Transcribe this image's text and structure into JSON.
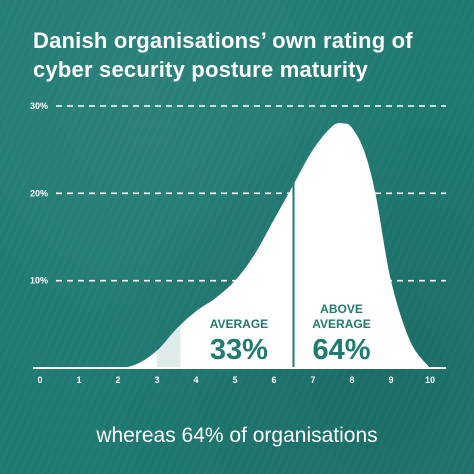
{
  "chart_data": {
    "type": "area",
    "title": "Danish organisations’ own rating of cyber security posture maturity",
    "xlabel": "",
    "ylabel": "",
    "x": [
      0,
      1,
      2,
      2.5,
      3,
      3.5,
      4,
      4.5,
      5,
      5.5,
      6,
      6.5,
      7,
      7.5,
      7.8,
      8,
      8.3,
      8.6,
      9,
      9.5,
      10
    ],
    "values": [
      0,
      0,
      0,
      0.5,
      2,
      4.5,
      6.5,
      8,
      10,
      13,
      17,
      21,
      25,
      27.7,
      28,
      27.5,
      25,
      20,
      10,
      3,
      0
    ],
    "xlim": [
      0,
      10
    ],
    "ylim": [
      0,
      30
    ],
    "x_ticks": [
      "0",
      "1",
      "2",
      "3",
      "4",
      "5",
      "6",
      "7",
      "8",
      "9",
      "10"
    ],
    "y_ticks": [
      "10%",
      "20%",
      "30%"
    ],
    "y_tick_values": [
      10,
      20,
      30
    ],
    "grid": "horizontal-dashed",
    "regions": [
      {
        "label": "AVERAGE",
        "value": "33%",
        "x_start": 3.6,
        "x_end": 6.5
      },
      {
        "label_lines": [
          "ABOVE",
          "AVERAGE"
        ],
        "value": "64%",
        "x_start": 6.5,
        "x_end": 10
      }
    ]
  },
  "caption": "whereas 64% of organisations",
  "colors": {
    "background": "#1f7a72",
    "curve": "#ffffff",
    "text_on_curve": "#1f7a72"
  }
}
